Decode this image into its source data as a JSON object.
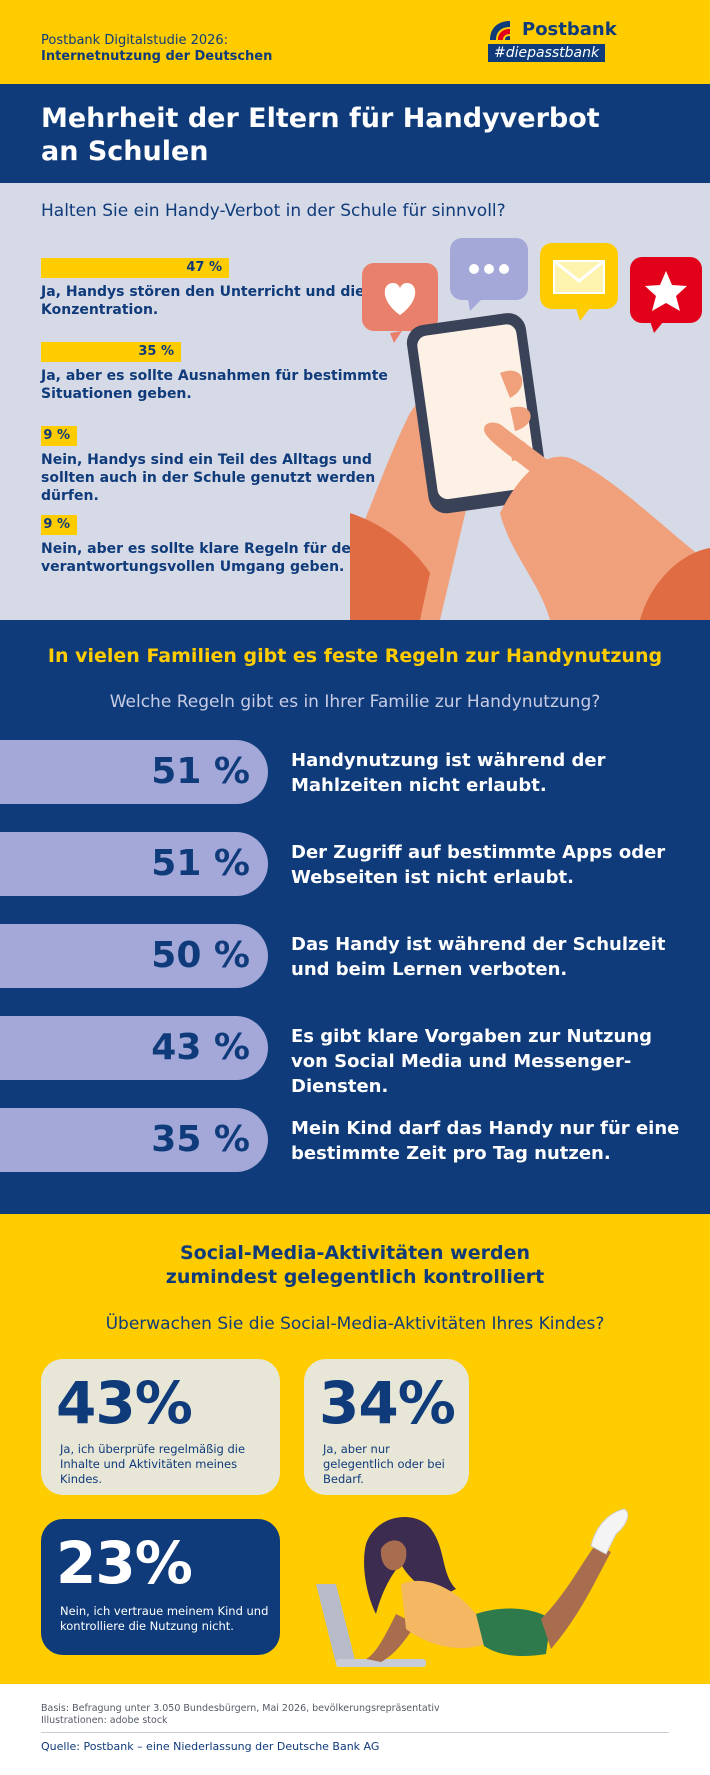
{
  "header": {
    "study_line1": "Postbank Digitalstudie 2026:",
    "study_line2": "Internetnutzung der Deutschen",
    "logo_word": "Postbank",
    "logo_tag": "#diepasstbank"
  },
  "title": "Mehrheit der Eltern für Handyverbot an Schulen",
  "colors": {
    "navy": "#0f3b7a",
    "yellow": "#ffcc00",
    "lavender": "#a3a8d8",
    "light_bg": "#d6d9e6"
  },
  "section1": {
    "question": "Halten Sie ein Handy-Verbot in der Schule für sinnvoll?",
    "items": [
      {
        "pct_label": "47 %",
        "text": "Ja, Handys stören den Unterricht und die Konzentration."
      },
      {
        "pct_label": "35 %",
        "text": "Ja, aber es sollte Ausnahmen für bestimmte Situationen geben."
      },
      {
        "pct_label": "9 %",
        "text": "Nein, Handys sind ein Teil des Alltags und sollten auch in der Schule genutzt werden dürfen."
      },
      {
        "pct_label": "9 %",
        "text": "Nein, aber es sollte klare Regeln für den verantwortungsvollen Umgang geben."
      }
    ]
  },
  "section2": {
    "title": "In vielen Familien gibt es feste Regeln zur Handynutzung",
    "question": "Welche Regeln gibt es in Ihrer Familie zur Handynutzung?",
    "rows": [
      {
        "value_label": "51 %",
        "text": "Handynutzung ist während der Mahlzeiten nicht erlaubt."
      },
      {
        "value_label": "51 %",
        "text": "Der Zugriff auf bestimmte Apps oder Webseiten ist nicht erlaubt."
      },
      {
        "value_label": "50 %",
        "text": "Das Handy ist während der Schulzeit und beim Lernen verboten."
      },
      {
        "value_label": "43 %",
        "text": "Es gibt klare Vorgaben zur Nutzung von Social Media und Messenger-Diensten."
      },
      {
        "value_label": "35 %",
        "text": "Mein Kind darf das Handy nur für eine bestimmte Zeit pro Tag nutzen."
      }
    ]
  },
  "section3": {
    "title": "Social-Media-Aktivitäten werden zumindest gelegentlich kontrolliert",
    "question": "Überwachen Sie die Social-Media-Aktivitäten Ihres Kindes?",
    "cards": [
      {
        "value_label": "43%",
        "text": "Ja, ich überprüfe regelmäßig die Inhalte und Aktivitäten meines Kindes."
      },
      {
        "value_label": "34%",
        "text": "Ja, aber nur gelegentlich oder bei Bedarf."
      },
      {
        "value_label": "23%",
        "text": "Nein, ich vertraue meinem Kind und kontrolliere die Nutzung nicht."
      }
    ]
  },
  "footer": {
    "basis": "Basis: Befragung unter 3.050 Bundesbürgern, Mai 2026, bevölkerungsrepräsentativ",
    "illustrations": "Illustrationen: adobe stock",
    "source": "Quelle: Postbank – eine Niederlassung der Deutsche Bank AG"
  },
  "chart_data": [
    {
      "type": "bar",
      "title": "",
      "categories": [
        "Ja, Handys stören den Unterricht und die Konzentration.",
        "Ja, aber es sollte Ausnahmen für bestimmte Situationen geben.",
        "Nein, Handys sind ein Teil des Alltags und sollten auch in der Schule genutzt werden dürfen.",
        "Nein, aber es sollte klare Regeln für den verantwortungsvollen Umgang geben."
      ],
      "values": [
        47,
        35,
        9,
        9
      ],
      "unit": "%",
      "xlim": [
        0,
        47
      ]
    },
    {
      "type": "bar",
      "title": "",
      "categories": [
        "Handynutzung ist während der Mahlzeiten nicht erlaubt.",
        "Der Zugriff auf bestimmte Apps oder Webseiten ist nicht erlaubt.",
        "Das Handy ist während der Schulzeit und beim Lernen verboten.",
        "Es gibt klare Vorgaben zur Nutzung von Social Media und Messenger-Diensten.",
        "Mein Kind darf das Handy nur für eine bestimmte Zeit pro Tag nutzen."
      ],
      "values": [
        51,
        51,
        50,
        43,
        35
      ],
      "unit": "%"
    },
    {
      "type": "table",
      "title": "",
      "categories": [
        "Ja, ich überprüfe regelmäßig die Inhalte und Aktivitäten meines Kindes.",
        "Ja, aber nur gelegentlich oder bei Bedarf.",
        "Nein, ich vertraue meinem Kind und kontrolliere die Nutzung nicht."
      ],
      "values": [
        43,
        34,
        23
      ],
      "unit": "%"
    }
  ]
}
